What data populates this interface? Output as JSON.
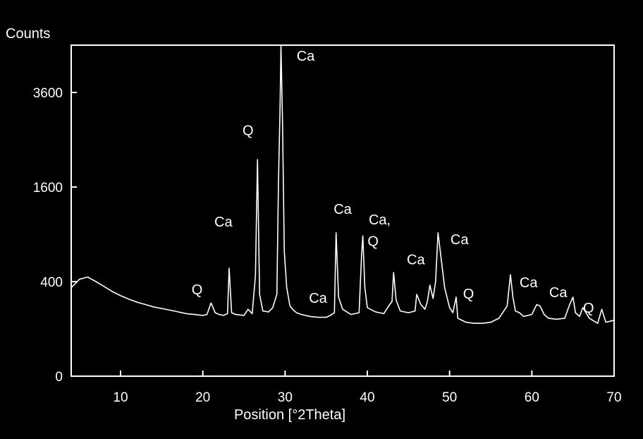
{
  "chart_data": {
    "type": "line",
    "ylabel": "Counts",
    "xlabel": "Position [°2Theta]",
    "x_ticks": [
      "10",
      "20",
      "30",
      "40",
      "50",
      "60",
      "70"
    ],
    "y_ticks": [
      "0",
      "400",
      "1600",
      "3600"
    ],
    "xlim": [
      4,
      70
    ],
    "ylim": [
      0,
      4900
    ],
    "y_scale": "sqrt",
    "grid": false,
    "line_color": "#ffffff",
    "background": "#000000",
    "series": [
      {
        "x": [
          4,
          5,
          6,
          7,
          8,
          9,
          10,
          11,
          12,
          13,
          14,
          15,
          16,
          17,
          18,
          19,
          20,
          20.5,
          21,
          21.5,
          22,
          22.5,
          23,
          23.2,
          23.5,
          24,
          25,
          25.5,
          26,
          26.4,
          26.65,
          26.9,
          27.3,
          28,
          28.5,
          29,
          29.2,
          29.4,
          29.5,
          29.7,
          29.9,
          30.2,
          30.6,
          31,
          31.4,
          32,
          33,
          34,
          35,
          35.5,
          36,
          36.2,
          36.5,
          37,
          38,
          39,
          39.3,
          39.45,
          39.7,
          40,
          41,
          42,
          42.6,
          43,
          43.2,
          43.5,
          44,
          45,
          45.8,
          46,
          46.5,
          47,
          47.3,
          47.6,
          48,
          48.3,
          48.6,
          49,
          49.4,
          50,
          50.4,
          50.8,
          51,
          52,
          53,
          54,
          55,
          56,
          57,
          57.4,
          57.7,
          58,
          58.5,
          59,
          60,
          60.6,
          61,
          61.5,
          62,
          63,
          64,
          64.6,
          65,
          65.3,
          65.8,
          66.2,
          67,
          68,
          68.5,
          69,
          70
        ],
        "y": [
          350,
          420,
          440,
          400,
          360,
          320,
          290,
          265,
          245,
          230,
          215,
          205,
          195,
          185,
          175,
          170,
          165,
          170,
          240,
          180,
          170,
          165,
          175,
          520,
          180,
          170,
          165,
          200,
          175,
          450,
          2100,
          300,
          190,
          185,
          210,
          300,
          1700,
          3300,
          4900,
          2800,
          700,
          350,
          220,
          195,
          180,
          170,
          160,
          155,
          155,
          165,
          180,
          920,
          280,
          200,
          170,
          180,
          650,
          880,
          350,
          210,
          185,
          175,
          220,
          250,
          480,
          260,
          190,
          180,
          190,
          300,
          230,
          200,
          250,
          370,
          270,
          400,
          920,
          600,
          350,
          210,
          180,
          280,
          150,
          130,
          125,
          125,
          130,
          150,
          220,
          460,
          280,
          190,
          180,
          160,
          170,
          230,
          220,
          170,
          150,
          145,
          150,
          230,
          280,
          180,
          160,
          210,
          150,
          125,
          200,
          130,
          140
        ]
      }
    ],
    "annotations": [
      {
        "text": "Q",
        "x": 19.3,
        "y": 300
      },
      {
        "text": "Ca",
        "x": 22.5,
        "y": 1000
      },
      {
        "text": "Q",
        "x": 25.5,
        "y": 2600
      },
      {
        "text": "Ca",
        "x": 32.5,
        "y": 4450
      },
      {
        "text": "Ca",
        "x": 34.0,
        "y": 240
      },
      {
        "text": "Ca",
        "x": 37.0,
        "y": 1180
      },
      {
        "text": "Ca,",
        "x": 41.5,
        "y": 1030
      },
      {
        "text": "Q",
        "x": 40.7,
        "y": 760
      },
      {
        "text": "Ca",
        "x": 45.9,
        "y": 560
      },
      {
        "text": "Ca",
        "x": 51.2,
        "y": 780
      },
      {
        "text": "Q",
        "x": 52.3,
        "y": 270
      },
      {
        "text": "Ca",
        "x": 59.6,
        "y": 355
      },
      {
        "text": "Ca",
        "x": 63.2,
        "y": 280
      },
      {
        "text": "Q",
        "x": 66.9,
        "y": 180
      }
    ]
  }
}
